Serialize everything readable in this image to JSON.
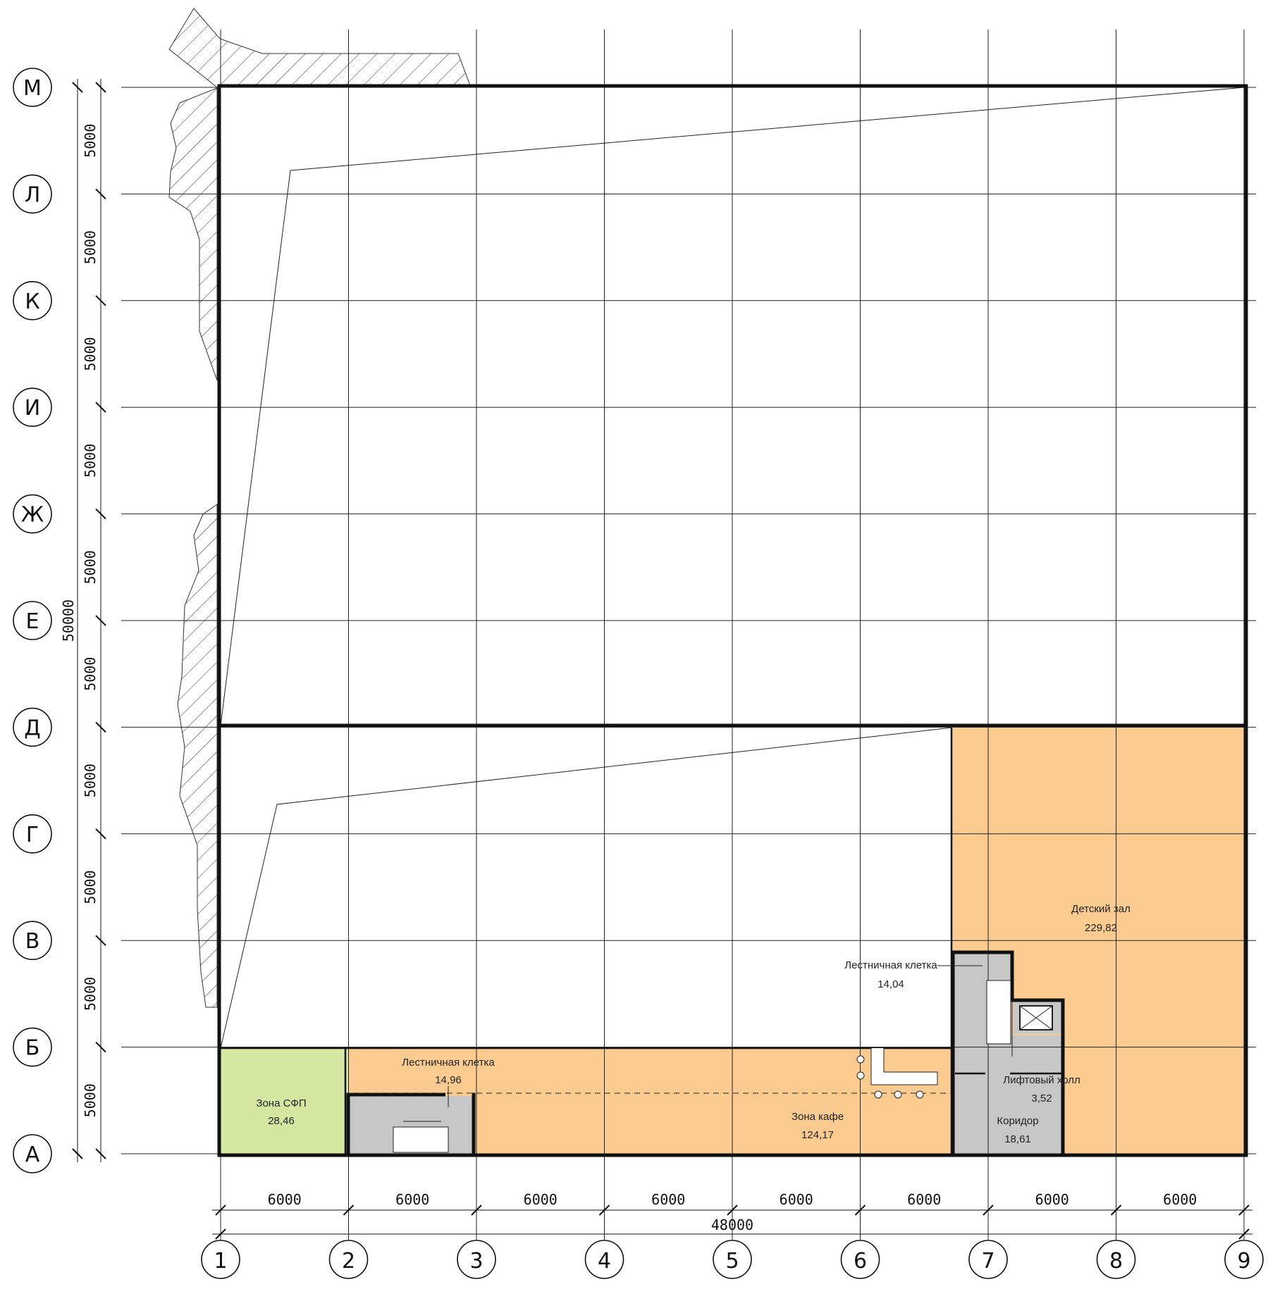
{
  "plan": {
    "colors": {
      "orange": "#fccb8f",
      "green": "#d4e8a2",
      "gray": "#c7c7c7",
      "dark": "#888888",
      "line": "#222222"
    },
    "col_axes": [
      "1",
      "2",
      "3",
      "4",
      "5",
      "6",
      "7",
      "8",
      "9"
    ],
    "row_axes": [
      "М",
      "Л",
      "К",
      "И",
      "Ж",
      "Е",
      "Д",
      "Г",
      "В",
      "Б",
      "А"
    ],
    "col_dims": [
      "6000",
      "6000",
      "6000",
      "6000",
      "6000",
      "6000",
      "6000",
      "6000"
    ],
    "row_dims": [
      "5000",
      "5000",
      "5000",
      "5000",
      "5000",
      "5000",
      "5000",
      "5000",
      "5000",
      "5000"
    ],
    "total_width": "48000",
    "total_height": "50000",
    "rooms": [
      {
        "name": "Зона СФП",
        "area": "28,46"
      },
      {
        "name": "Лестничная клетка",
        "area": "14,96"
      },
      {
        "name": "Зона кафе",
        "area": "124,17"
      },
      {
        "name": "Детский зал",
        "area": "229,82"
      },
      {
        "name": "Лестничная клетка",
        "area": "14,04"
      },
      {
        "name": "Лифтовый холл",
        "area": "3,52"
      },
      {
        "name": "Коридор",
        "area": "18,61"
      }
    ]
  }
}
